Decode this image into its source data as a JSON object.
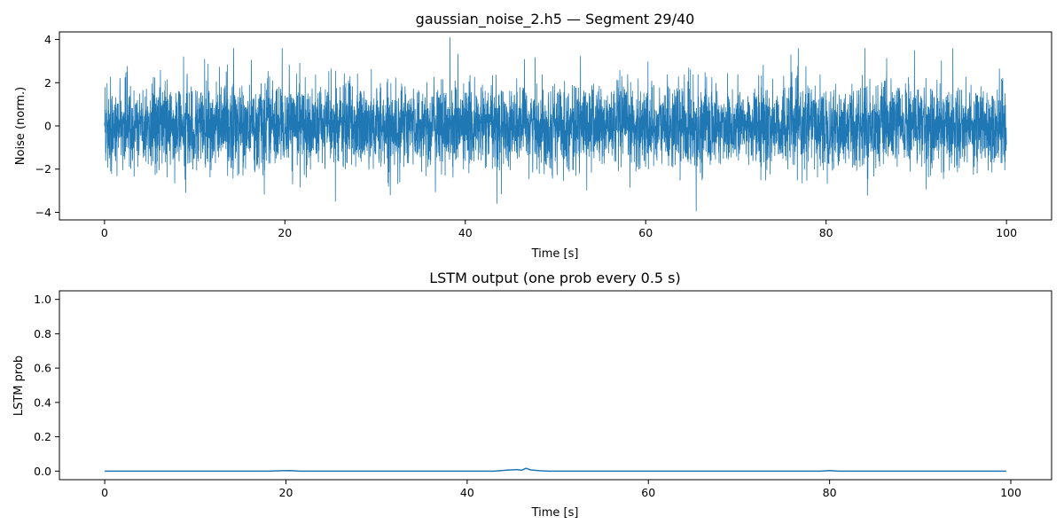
{
  "figure": {
    "style": {
      "line_color": "#1f77b4",
      "axes_color": "#000000",
      "background": "#ffffff"
    }
  },
  "chart_data": [
    {
      "type": "line",
      "title": "gaussian_noise_2.h5 — Segment 29/40",
      "xlabel": "Time [s]",
      "ylabel": "Noise (norm.)",
      "xlim": [
        -5,
        105
      ],
      "ylim": [
        -4.35,
        4.35
      ],
      "xticks": [
        0,
        20,
        40,
        60,
        80,
        100
      ],
      "xtick_labels": [
        "0",
        "20",
        "40",
        "60",
        "80",
        "100"
      ],
      "yticks": [
        -4,
        -2,
        0,
        2,
        4
      ],
      "ytick_labels": [
        "−4",
        "−2",
        "0",
        "2",
        "4"
      ],
      "series": [
        {
          "name": "noise",
          "description": "Gaussian noise trace, dense signal over 0–100 s",
          "x_range": [
            0,
            100
          ],
          "mean": 0.0,
          "std": 0.95,
          "max": 4.1,
          "min": -3.95,
          "peaks": [
            {
              "x": 38.3,
              "y": 4.1
            },
            {
              "x": 65.6,
              "y": -3.95
            },
            {
              "x": 43.5,
              "y": -3.6
            },
            {
              "x": 25.6,
              "y": -3.5
            },
            {
              "x": 11.1,
              "y": 3.1
            },
            {
              "x": 19.7,
              "y": 3.6
            },
            {
              "x": 76.1,
              "y": 3.3
            },
            {
              "x": 84.3,
              "y": 3.6
            },
            {
              "x": 89.8,
              "y": 3.5
            }
          ]
        }
      ]
    },
    {
      "type": "line",
      "title": "LSTM output (one prob every 0.5 s)",
      "xlabel": "Time [s]",
      "ylabel": "LSTM prob",
      "xlim": [
        -5,
        104.5
      ],
      "ylim": [
        -0.05,
        1.05
      ],
      "xticks": [
        0,
        20,
        40,
        60,
        80,
        100
      ],
      "xtick_labels": [
        "0",
        "20",
        "40",
        "60",
        "80",
        "100"
      ],
      "yticks": [
        0.0,
        0.2,
        0.4,
        0.6,
        0.8,
        1.0
      ],
      "ytick_labels": [
        "0.0",
        "0.2",
        "0.4",
        "0.6",
        "0.8",
        "1.0"
      ],
      "series": [
        {
          "name": "LSTM prob",
          "x": [
            0,
            18,
            19.5,
            20.5,
            21.5,
            43,
            44.5,
            45.5,
            46,
            46.5,
            47,
            48,
            49,
            79,
            80,
            81,
            99.5
          ],
          "y": [
            0.0,
            0.0,
            0.002,
            0.003,
            0.0,
            0.0,
            0.006,
            0.009,
            0.005,
            0.016,
            0.007,
            0.002,
            0.0,
            0.0,
            0.003,
            0.0,
            0.0
          ]
        }
      ]
    }
  ]
}
